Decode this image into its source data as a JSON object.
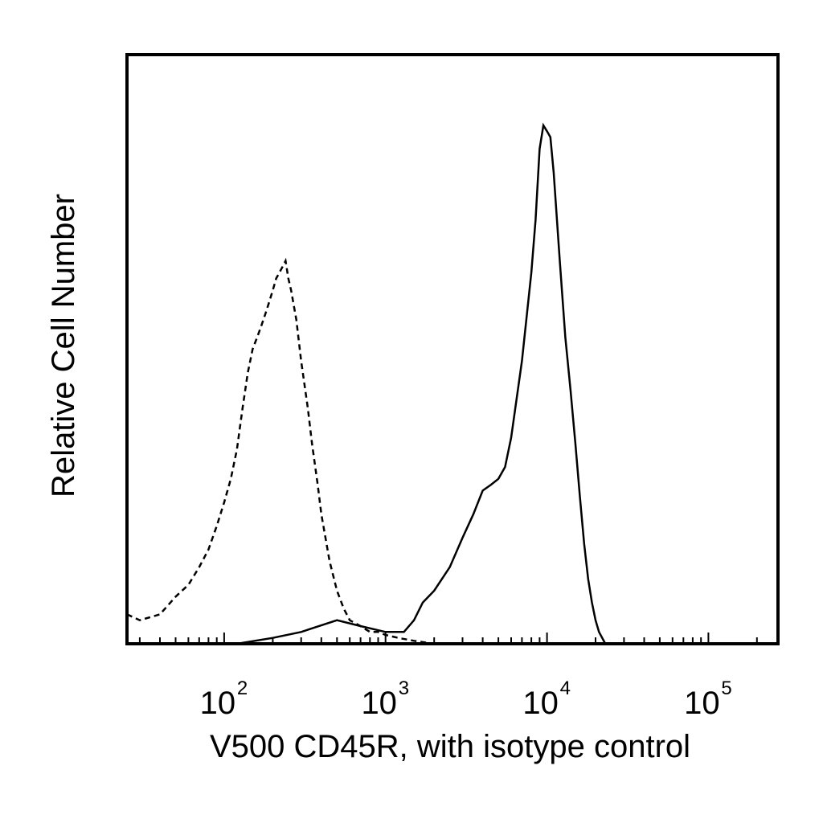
{
  "chart_data": {
    "type": "line",
    "xlabel": "V500 CD45R, with isotype control",
    "ylabel": "Relative Cell Number",
    "x_scale": "log",
    "xlim": [
      25,
      270000
    ],
    "ylim": [
      0,
      100
    ],
    "grid": false,
    "x_ticks": [
      {
        "value": 100,
        "base": "10",
        "exp": "2"
      },
      {
        "value": 1000,
        "base": "10",
        "exp": "3"
      },
      {
        "value": 10000,
        "base": "10",
        "exp": "4"
      },
      {
        "value": 100000,
        "base": "10",
        "exp": "5"
      }
    ],
    "series": [
      {
        "style": "dashed",
        "x": [
          25,
          30,
          40,
          50,
          60,
          70,
          80,
          90,
          100,
          110,
          120,
          130,
          140,
          150,
          160,
          170,
          180,
          190,
          200,
          210,
          220,
          230,
          240,
          250,
          260,
          280,
          300,
          330,
          350,
          380,
          400,
          450,
          500,
          550,
          600,
          700,
          800,
          900,
          1000,
          1200,
          1500,
          2000
        ],
        "y": [
          5,
          4,
          5,
          8,
          10,
          13,
          16,
          20,
          24,
          28,
          33,
          40,
          46,
          50,
          52,
          54,
          56,
          58,
          60,
          62,
          63,
          64,
          65,
          62,
          60,
          55,
          48,
          40,
          34,
          27,
          22,
          14,
          9,
          6,
          4,
          3,
          2,
          2,
          1.5,
          1,
          0.5,
          0
        ]
      },
      {
        "style": "solid",
        "x": [
          120,
          200,
          300,
          500,
          700,
          1000,
          1300,
          1500,
          1700,
          2000,
          2500,
          3000,
          3500,
          4000,
          4500,
          5000,
          5500,
          6000,
          7000,
          8000,
          8500,
          9000,
          9500,
          10000,
          10500,
          11000,
          12000,
          13000,
          14000,
          15000,
          16000,
          17000,
          18000,
          19000,
          20000,
          21000,
          23000
        ],
        "y": [
          0,
          1,
          2,
          4,
          3,
          2,
          2,
          4,
          7,
          9,
          13,
          18,
          22,
          26,
          27,
          28,
          30,
          35,
          48,
          63,
          72,
          84,
          88,
          87,
          86,
          80,
          65,
          52,
          43,
          34,
          25,
          17,
          11,
          7,
          4,
          2,
          0
        ]
      }
    ]
  }
}
